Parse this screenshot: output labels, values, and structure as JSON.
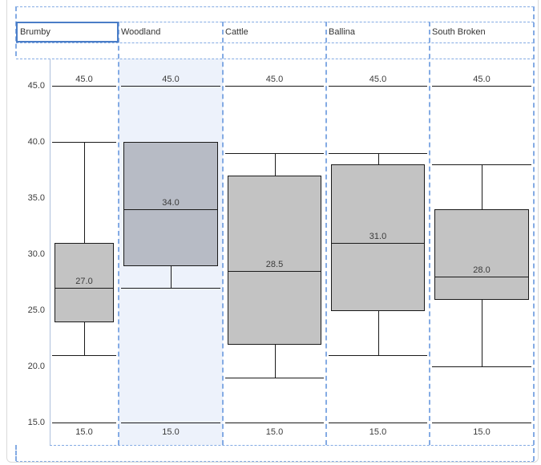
{
  "header": {
    "cells": [
      {
        "label": "Brumby",
        "selected": true
      },
      {
        "label": "Woodland",
        "selected": false
      },
      {
        "label": "Cattle",
        "selected": false
      },
      {
        "label": "Ballina",
        "selected": false
      },
      {
        "label": "South Broken",
        "selected": false
      }
    ]
  },
  "chart_data": {
    "type": "box",
    "categories": [
      "Brumby",
      "Woodland",
      "Cattle",
      "Ballina",
      "South Broken"
    ],
    "y_axis": {
      "ticks": [
        45,
        40,
        35,
        30,
        25,
        20,
        15
      ],
      "tick_labels": [
        "45.0",
        "40.0",
        "35.0",
        "30.0",
        "25.0",
        "20.0",
        "15.0"
      ],
      "min": 15,
      "max": 45,
      "grid": false
    },
    "scale_labels": {
      "top": "45.0",
      "bottom": "15.0"
    },
    "series": [
      {
        "name": "Brumby",
        "whisker_min": 21,
        "q1": 24,
        "median": 27,
        "q3": 31,
        "whisker_max": 40,
        "median_label": "27.0",
        "highlighted": false
      },
      {
        "name": "Woodland",
        "whisker_min": 27,
        "q1": 29,
        "median": 34,
        "q3": 40,
        "whisker_max": 40,
        "median_label": "34.0",
        "highlighted": true
      },
      {
        "name": "Cattle",
        "whisker_min": 19,
        "q1": 22,
        "median": 28.5,
        "q3": 37,
        "whisker_max": 39,
        "median_label": "28.5",
        "highlighted": false
      },
      {
        "name": "Ballina",
        "whisker_min": 21,
        "q1": 25,
        "median": 31,
        "q3": 38,
        "whisker_max": 39,
        "median_label": "31.0",
        "highlighted": false
      },
      {
        "name": "South Broken",
        "whisker_min": 20,
        "q1": 26,
        "median": 28,
        "q3": 34,
        "whisker_max": 38,
        "median_label": "28.0",
        "highlighted": false
      }
    ]
  },
  "colors": {
    "selection_guide": "#84abe4",
    "box_fill": "#c3c3c3",
    "box_fill_selected": "#b7bbc5",
    "column_highlight": "#edf2fb",
    "selected_cell_border": "#4a7dc7",
    "stroke": "#1a1a1a",
    "axis_line": "#aec0dc",
    "text": "#3b3b3b"
  }
}
